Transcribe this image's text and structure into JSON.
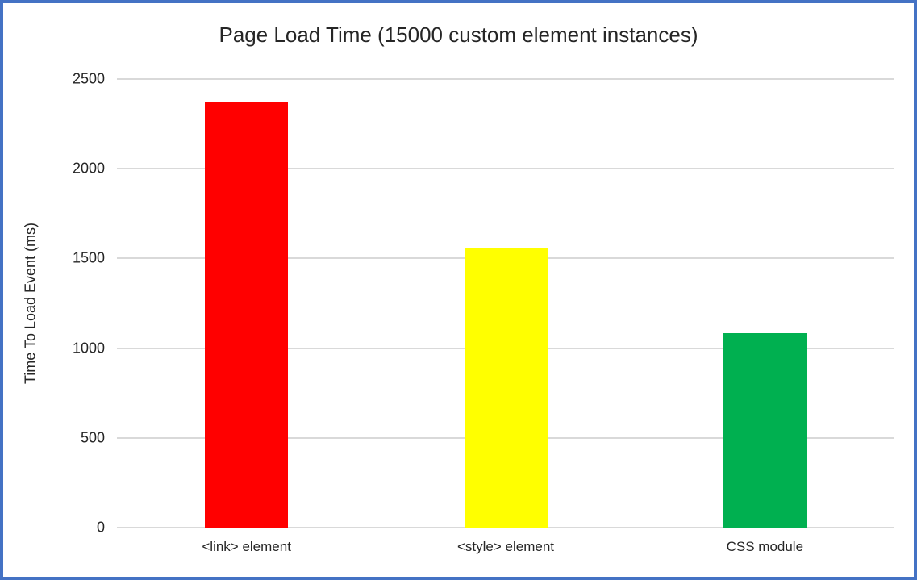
{
  "chart_data": {
    "type": "bar",
    "title": "Page Load Time (15000 custom element instances)",
    "ylabel": "Time To Load Event (ms)",
    "xlabel": "",
    "categories": [
      "<link> element",
      "<style> element",
      "CSS module"
    ],
    "values": [
      2375,
      1560,
      1085
    ],
    "bar_colors": [
      "#FF0000",
      "#FFFF00",
      "#00B050"
    ],
    "ylim": [
      0,
      2500
    ],
    "yticks": [
      0,
      500,
      1000,
      1500,
      2000,
      2500
    ],
    "grid": "horizontal gridlines only",
    "legend": "none"
  },
  "frame": {
    "border_color": "#4472C4",
    "gridline_color": "#D9D9D9",
    "text_color": "#262626",
    "background": "#FFFFFF"
  }
}
